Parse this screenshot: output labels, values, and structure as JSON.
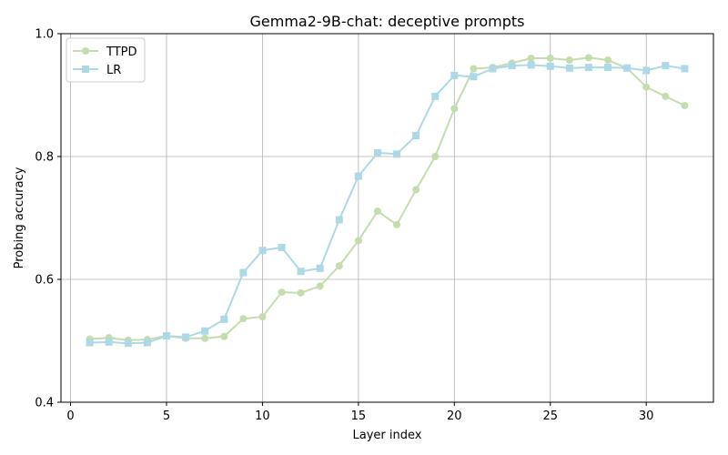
{
  "chart_data": {
    "type": "line",
    "title": "Gemma2-9B-chat: deceptive prompts",
    "xlabel": "Layer index",
    "ylabel": "Probing accuracy",
    "xlim": [
      -0.5,
      33.5
    ],
    "ylim": [
      0.4,
      1.0
    ],
    "xticks": [
      0,
      5,
      10,
      15,
      20,
      25,
      30
    ],
    "yticks": [
      0.4,
      0.6,
      0.8,
      1.0
    ],
    "grid": true,
    "legend_position": "top-left",
    "x": [
      1,
      2,
      3,
      4,
      5,
      6,
      7,
      8,
      9,
      10,
      11,
      12,
      13,
      14,
      15,
      16,
      17,
      18,
      19,
      20,
      21,
      22,
      23,
      24,
      25,
      26,
      27,
      28,
      29,
      30,
      31,
      32
    ],
    "series": [
      {
        "name": "TTPD",
        "color": "#c5dcae",
        "marker": "circle",
        "values": [
          0.503,
          0.505,
          0.501,
          0.502,
          0.508,
          0.504,
          0.504,
          0.507,
          0.536,
          0.539,
          0.579,
          0.578,
          0.589,
          0.622,
          0.663,
          0.711,
          0.689,
          0.746,
          0.8,
          0.878,
          0.943,
          0.945,
          0.952,
          0.96,
          0.96,
          0.957,
          0.961,
          0.957,
          0.944,
          0.913,
          0.898,
          0.883
        ]
      },
      {
        "name": "LR",
        "color": "#add8e6",
        "marker": "square",
        "values": [
          0.497,
          0.498,
          0.496,
          0.497,
          0.508,
          0.506,
          0.516,
          0.535,
          0.611,
          0.647,
          0.652,
          0.613,
          0.618,
          0.697,
          0.768,
          0.806,
          0.804,
          0.834,
          0.898,
          0.932,
          0.93,
          0.943,
          0.948,
          0.949,
          0.947,
          0.944,
          0.945,
          0.945,
          0.944,
          0.94,
          0.948,
          0.943
        ]
      }
    ]
  }
}
